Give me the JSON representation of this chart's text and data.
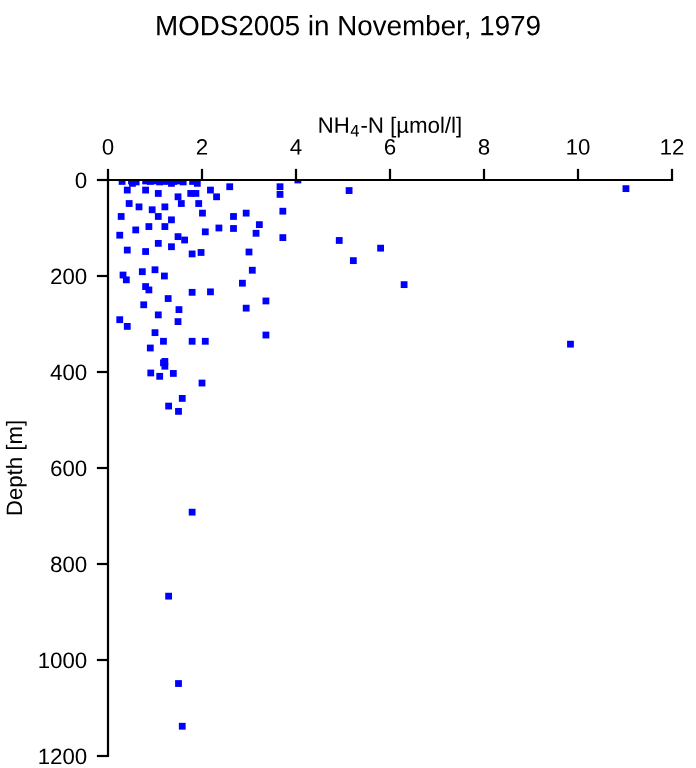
{
  "chart_data": {
    "type": "scatter",
    "title": "MODS2005 in November, 1979",
    "xlabel": "NH$_{4}$-N [µmol/l]",
    "ylabel": "Depth [m]",
    "marker": "square",
    "grid": false,
    "legend": false,
    "xlim": [
      0,
      12
    ],
    "xticks": [
      0,
      2,
      4,
      6,
      8,
      10,
      12
    ],
    "ylim": [
      1200,
      0
    ],
    "yticks": [
      0,
      200,
      400,
      600,
      800,
      1000,
      1200
    ],
    "series": [
      {
        "color": "#0000ff",
        "x": [
          0.3,
          0.5,
          0.6,
          0.8,
          0.9,
          1.0,
          1.1,
          1.2,
          1.3,
          1.4,
          1.5,
          1.6,
          1.8,
          0.41,
          0.8,
          1.07,
          1.76,
          2.31,
          2.59,
          3.66,
          3.66,
          3.72,
          3.72,
          2.94,
          2.67,
          3.22,
          3.15,
          2.67,
          2.36,
          2.07,
          0.28,
          0.25,
          0.41,
          0.8,
          3.0,
          1.79,
          1.98,
          3.07,
          2.86,
          3.36,
          2.94,
          3.36,
          2.18,
          1.79,
          0.32,
          0.39,
          0.73,
          1.0,
          1.2,
          0.8,
          0.87,
          1.28,
          0.76,
          1.51,
          0.25,
          0.41,
          1.07,
          1.49,
          1.0,
          1.18,
          1.79,
          2.07,
          0.9,
          1.21,
          1.21,
          0.52,
          1.35,
          1.49,
          1.56,
          1.21,
          0.94,
          0.66,
          0.45,
          1.07,
          1.35,
          0.87,
          1.21,
          1.49,
          0.59,
          1.07,
          1.35,
          1.63,
          1.93,
          2.01,
          1.87,
          2.18,
          1.9,
          1.18,
          0.91,
          1.1,
          1.39,
          2.0,
          1.58,
          1.29,
          1.5,
          1.79,
          1.29,
          1.5,
          1.58,
          4.04,
          5.13,
          11.02,
          4.92,
          5.8,
          5.22,
          6.3,
          9.84
        ],
        "values": [
          3,
          2,
          4,
          2,
          3,
          2,
          4,
          3,
          2,
          3,
          2,
          4,
          3,
          21,
          21,
          28,
          28,
          35,
          14,
          14,
          30,
          65,
          120,
          69,
          76,
          93,
          111,
          101,
          100,
          108,
          76,
          115,
          146,
          149,
          150,
          154,
          151,
          188,
          215,
          252,
          267,
          323,
          233,
          234,
          198,
          208,
          191,
          187,
          200,
          222,
          229,
          247,
          260,
          270,
          291,
          305,
          281,
          295,
          318,
          336,
          336,
          336,
          350,
          378,
          388,
          7,
          7,
          35,
          49,
          56,
          62,
          56,
          49,
          76,
          83,
          97,
          97,
          118,
          104,
          132,
          139,
          125,
          49,
          69,
          28,
          21,
          7,
          381,
          402,
          409,
          403,
          423,
          455,
          471,
          482,
          692,
          867,
          1049,
          1138,
          0,
          22,
          18,
          126,
          142,
          168,
          218,
          342
        ]
      }
    ]
  }
}
